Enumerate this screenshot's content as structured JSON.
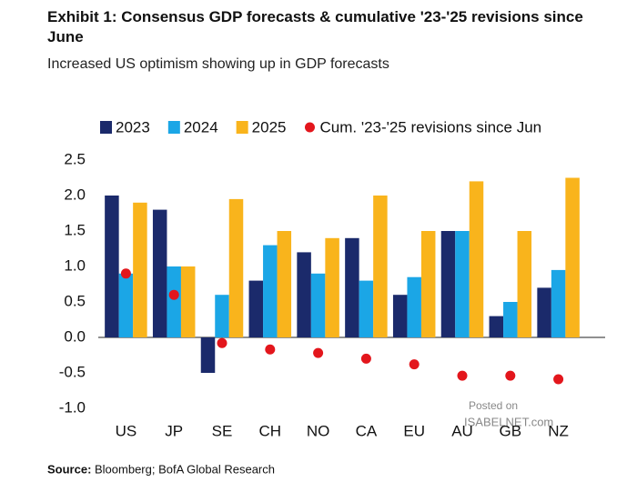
{
  "chart_data": {
    "type": "bar",
    "title": "Exhibit 1: Consensus GDP forecasts & cumulative '23-'25 revisions since June",
    "subtitle": "Increased US optimism showing up in GDP forecasts",
    "categories": [
      "US",
      "JP",
      "SE",
      "CH",
      "NO",
      "CA",
      "EU",
      "AU",
      "GB",
      "NZ"
    ],
    "series": [
      {
        "name": "2023",
        "color": "#1b2a6b",
        "values": [
          2.0,
          1.8,
          -0.5,
          0.8,
          1.2,
          1.4,
          0.6,
          1.5,
          0.3,
          0.7
        ]
      },
      {
        "name": "2024",
        "color": "#1ba6e6",
        "values": [
          0.9,
          1.0,
          0.6,
          1.3,
          0.9,
          0.8,
          0.85,
          1.5,
          0.5,
          0.95
        ]
      },
      {
        "name": "2025",
        "color": "#f9b41c",
        "values": [
          1.9,
          1.0,
          1.95,
          1.5,
          1.4,
          2.0,
          1.5,
          2.2,
          1.5,
          2.25
        ]
      },
      {
        "name": "Cum. '23-'25 revisions since Jun",
        "color": "#e3161c",
        "type": "scatter",
        "values": [
          0.9,
          0.6,
          -0.08,
          -0.17,
          -0.22,
          -0.3,
          -0.38,
          -0.54,
          -0.54,
          -0.59
        ]
      }
    ],
    "ylim": [
      -1.0,
      2.5
    ],
    "yticks": [
      {
        "value": -1,
        "label": "-1.0"
      },
      -0.5,
      {
        "value": 0,
        "label": "0.0"
      },
      0.5,
      {
        "value": 1,
        "label": "1.0"
      },
      1.5,
      {
        "value": 2,
        "label": "2.0"
      },
      2.5
    ],
    "grid": false,
    "annotations": [
      "Posted on",
      "ISABELNET.com"
    ],
    "source_label": "Source:",
    "source": "Bloomberg; BofA Global Research"
  }
}
